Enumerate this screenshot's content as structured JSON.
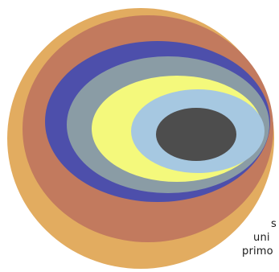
{
  "artwork": {
    "rings": [
      {
        "name": "outer-ring",
        "color": "#e2ac60"
      },
      {
        "name": "terracotta-ring",
        "color": "#c27a5e"
      },
      {
        "name": "indigo-ring",
        "color": "#4d4fab"
      },
      {
        "name": "slate-ring",
        "color": "#8a9ca5"
      },
      {
        "name": "yellow-ring",
        "color": "#f4f97c"
      },
      {
        "name": "light-blue-ring",
        "color": "#a6c8e1"
      },
      {
        "name": "core",
        "color": "#4d4d4d"
      }
    ]
  },
  "clipped_text": {
    "line1": "s",
    "line2": "uni",
    "line3": "primo"
  }
}
